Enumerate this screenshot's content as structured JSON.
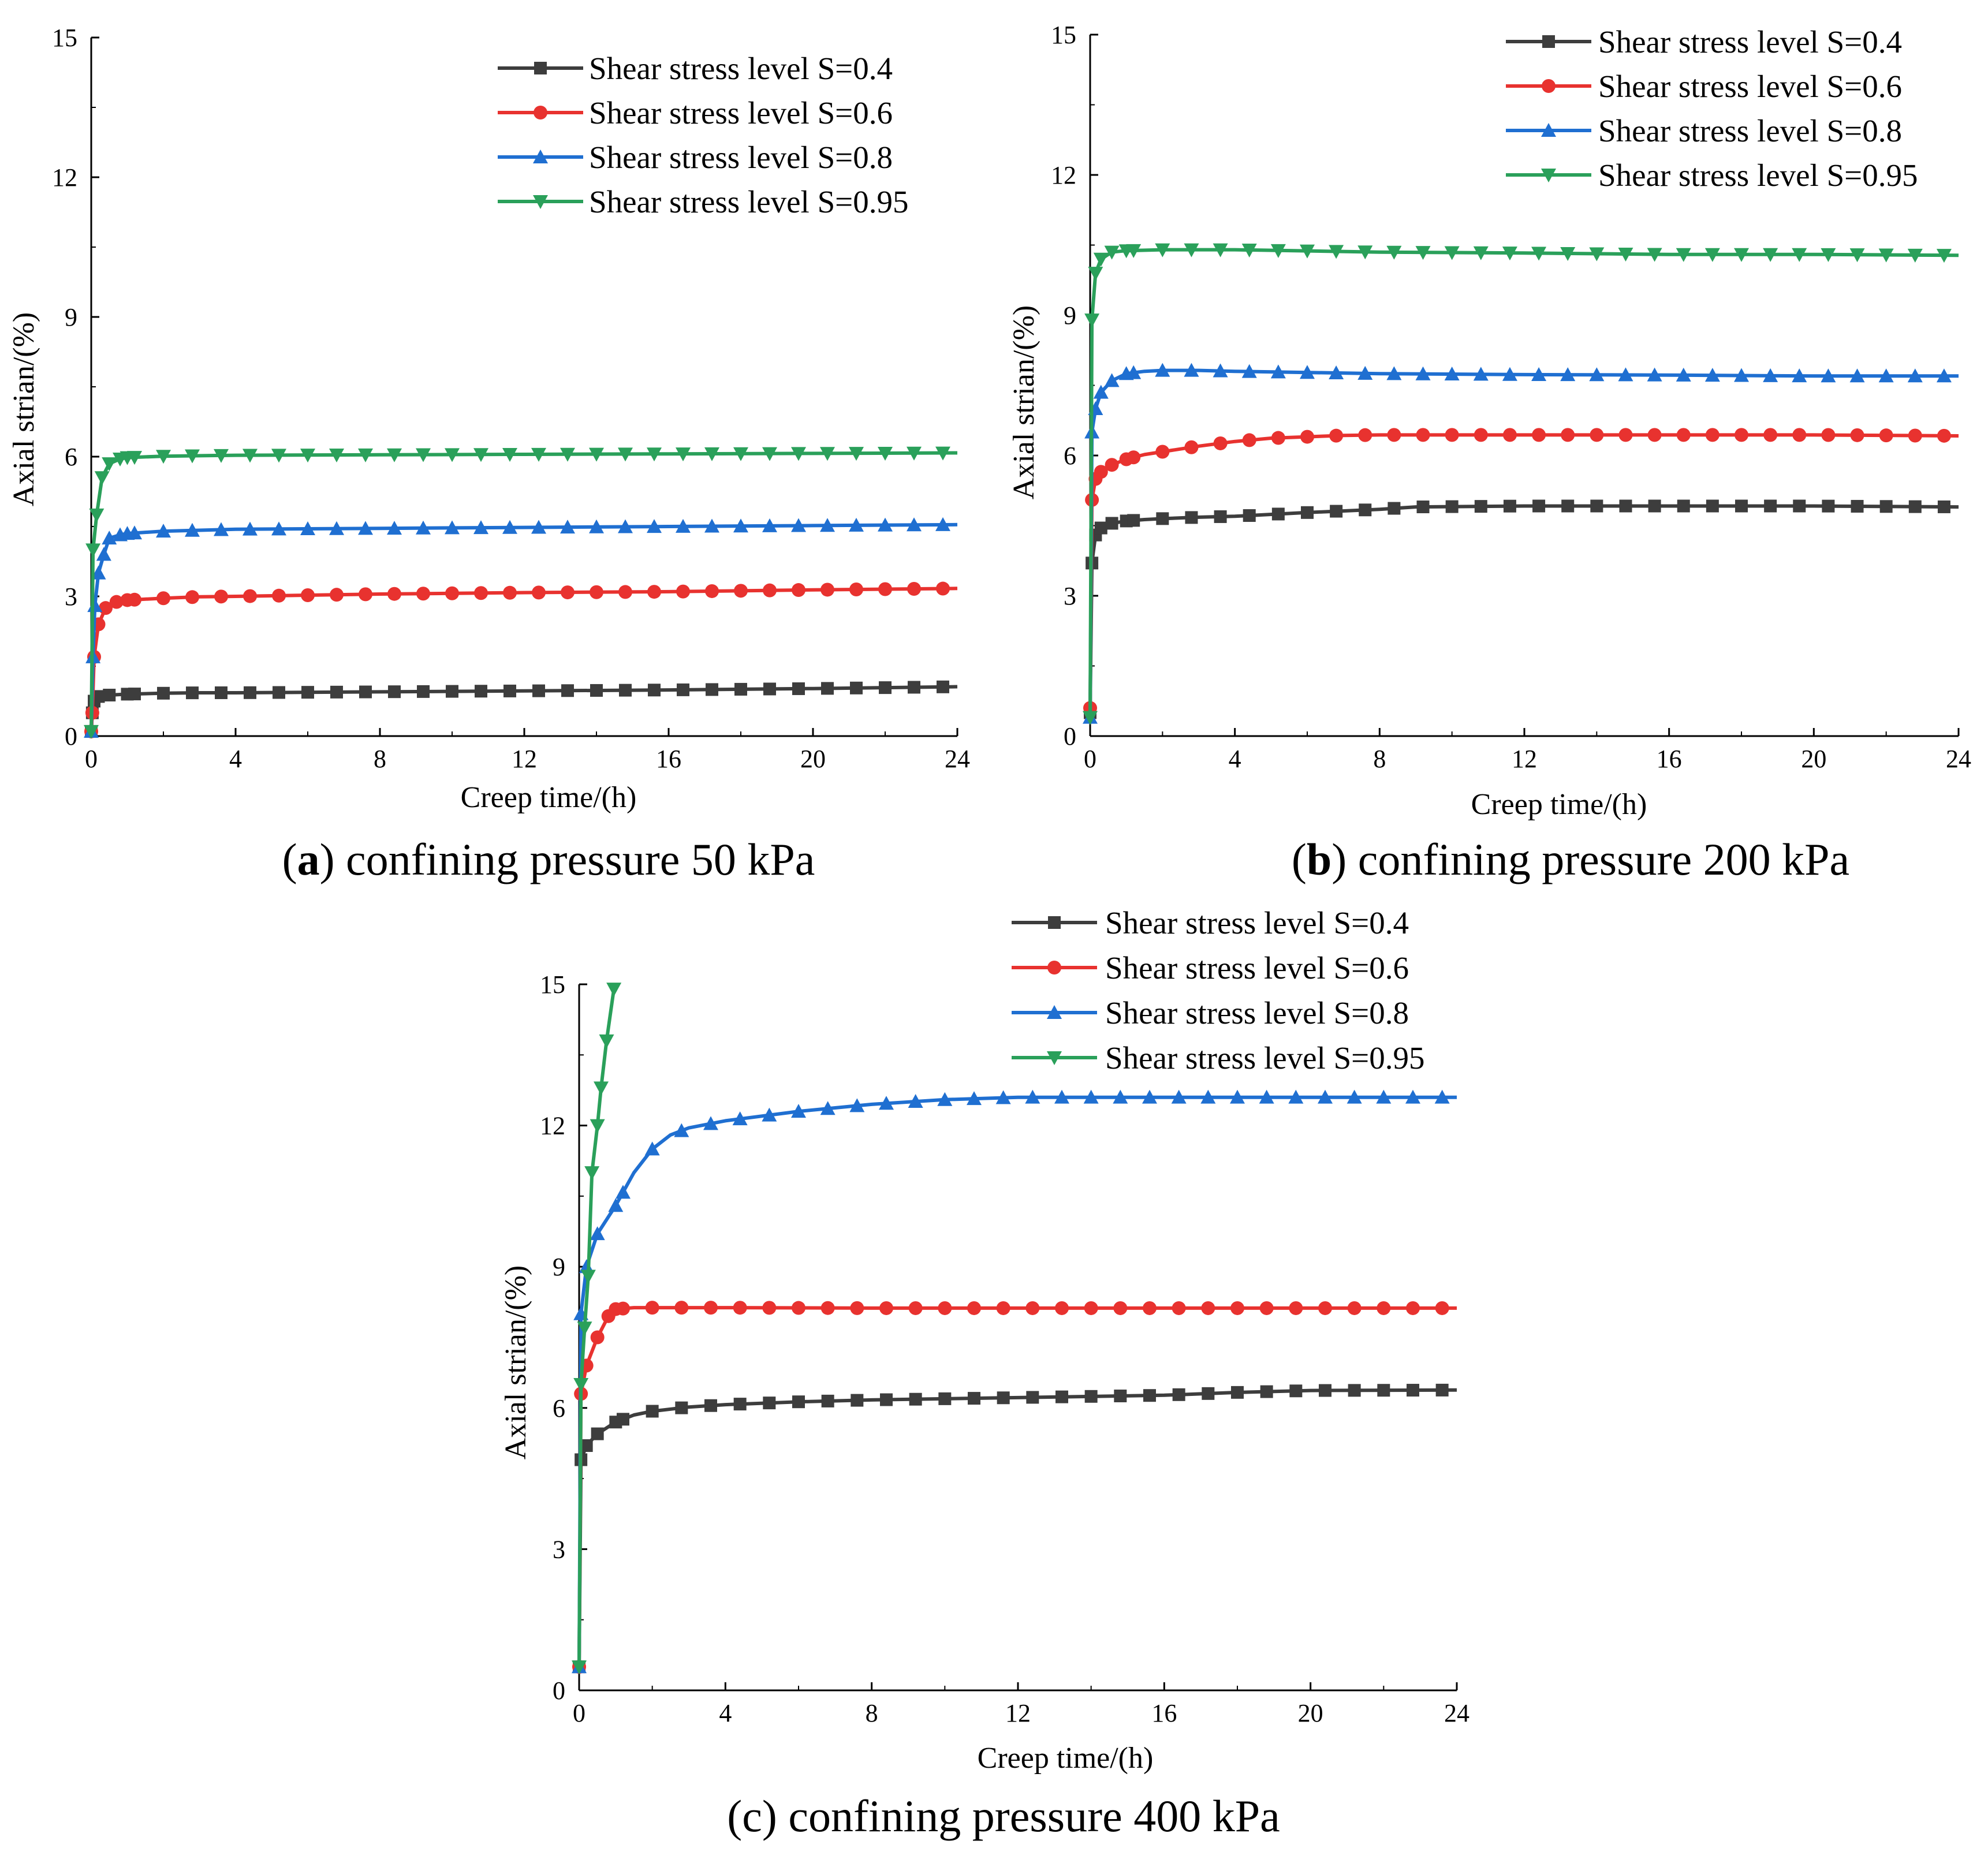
{
  "figure": {
    "captions": [
      {
        "letter": "a",
        "text": ") confining pressure 50 kPa"
      },
      {
        "letter": "b",
        "text": ") confining pressure 200 kPa"
      },
      {
        "letter": "c",
        "text": ") confining pressure 400 kPa"
      }
    ]
  },
  "chart_data": [
    {
      "id": "a",
      "type": "line",
      "title": "(a) confining pressure 50 kPa",
      "xlabel": "Creep time/(h)",
      "ylabel": "Axial strian/(%)",
      "xlim": [
        0,
        24
      ],
      "ylim": [
        0,
        15
      ],
      "xticks": [
        0,
        4,
        8,
        12,
        16,
        20,
        24
      ],
      "yticks": [
        0,
        3,
        6,
        9,
        12,
        15
      ],
      "legend_position": "top-right",
      "series": [
        {
          "name": "Shear stress level S=0.4",
          "color": "#3d3d3d",
          "marker": "square",
          "points": [
            [
              0,
              0.1
            ],
            [
              0.03,
              0.5
            ],
            [
              0.08,
              0.75
            ],
            [
              0.2,
              0.85
            ],
            [
              0.5,
              0.88
            ],
            [
              1,
              0.9
            ],
            [
              2,
              0.92
            ],
            [
              3,
              0.93
            ],
            [
              4,
              0.93
            ],
            [
              8,
              0.95
            ],
            [
              12,
              0.97
            ],
            [
              16,
              0.99
            ],
            [
              20,
              1.02
            ],
            [
              24,
              1.06
            ]
          ]
        },
        {
          "name": "Shear stress level S=0.6",
          "color": "#e8322f",
          "marker": "circle",
          "points": [
            [
              0,
              0.1
            ],
            [
              0.03,
              0.5
            ],
            [
              0.08,
              1.7
            ],
            [
              0.2,
              2.4
            ],
            [
              0.4,
              2.75
            ],
            [
              0.7,
              2.88
            ],
            [
              1,
              2.92
            ],
            [
              2,
              2.96
            ],
            [
              3,
              2.99
            ],
            [
              4,
              3.0
            ],
            [
              8,
              3.05
            ],
            [
              12,
              3.08
            ],
            [
              16,
              3.1
            ],
            [
              20,
              3.14
            ],
            [
              24,
              3.17
            ]
          ]
        },
        {
          "name": "Shear stress level S=0.8",
          "color": "#1f6fd1",
          "marker": "triangle-up",
          "points": [
            [
              0,
              0.1
            ],
            [
              0.05,
              1.7
            ],
            [
              0.1,
              2.8
            ],
            [
              0.2,
              3.5
            ],
            [
              0.35,
              3.9
            ],
            [
              0.5,
              4.25
            ],
            [
              0.8,
              4.32
            ],
            [
              1,
              4.35
            ],
            [
              2,
              4.4
            ],
            [
              3,
              4.42
            ],
            [
              4,
              4.44
            ],
            [
              8,
              4.46
            ],
            [
              12,
              4.48
            ],
            [
              16,
              4.5
            ],
            [
              20,
              4.52
            ],
            [
              24,
              4.54
            ]
          ]
        },
        {
          "name": "Shear stress level S=0.95",
          "color": "#2aa05a",
          "marker": "triangle-down",
          "points": [
            [
              0,
              0.1
            ],
            [
              0.05,
              4.0
            ],
            [
              0.15,
              4.75
            ],
            [
              0.3,
              5.55
            ],
            [
              0.5,
              5.85
            ],
            [
              0.8,
              5.95
            ],
            [
              1,
              5.98
            ],
            [
              2,
              6.01
            ],
            [
              3,
              6.02
            ],
            [
              4,
              6.03
            ],
            [
              8,
              6.04
            ],
            [
              12,
              6.05
            ],
            [
              16,
              6.06
            ],
            [
              20,
              6.07
            ],
            [
              24,
              6.08
            ]
          ]
        }
      ]
    },
    {
      "id": "b",
      "type": "line",
      "title": "(b) confining pressure 200 kPa",
      "xlabel": "Creep time/(h)",
      "ylabel": "Axial strian/(%)",
      "xlim": [
        0,
        24
      ],
      "ylim": [
        0,
        15
      ],
      "xticks": [
        0,
        4,
        8,
        12,
        16,
        20,
        24
      ],
      "yticks": [
        0,
        3,
        6,
        9,
        12,
        15
      ],
      "legend_position": "top-right",
      "series": [
        {
          "name": "Shear stress level S=0.4",
          "color": "#3d3d3d",
          "marker": "square",
          "points": [
            [
              0,
              0.5
            ],
            [
              0.05,
              3.7
            ],
            [
              0.15,
              4.3
            ],
            [
              0.3,
              4.45
            ],
            [
              0.6,
              4.55
            ],
            [
              1,
              4.6
            ],
            [
              1.5,
              4.63
            ],
            [
              2,
              4.65
            ],
            [
              3,
              4.68
            ],
            [
              4,
              4.7
            ],
            [
              6,
              4.78
            ],
            [
              8,
              4.85
            ],
            [
              9,
              4.9
            ],
            [
              12,
              4.92
            ],
            [
              16,
              4.92
            ],
            [
              20,
              4.92
            ],
            [
              24,
              4.9
            ]
          ]
        },
        {
          "name": "Shear stress level S=0.6",
          "color": "#e8322f",
          "marker": "circle",
          "points": [
            [
              0,
              0.6
            ],
            [
              0.05,
              5.05
            ],
            [
              0.15,
              5.5
            ],
            [
              0.3,
              5.65
            ],
            [
              0.6,
              5.8
            ],
            [
              1,
              5.92
            ],
            [
              1.5,
              6.02
            ],
            [
              2,
              6.08
            ],
            [
              3,
              6.2
            ],
            [
              4,
              6.3
            ],
            [
              5,
              6.37
            ],
            [
              6,
              6.4
            ],
            [
              7,
              6.43
            ],
            [
              8,
              6.44
            ],
            [
              12,
              6.44
            ],
            [
              16,
              6.44
            ],
            [
              20,
              6.44
            ],
            [
              24,
              6.42
            ]
          ]
        },
        {
          "name": "Shear stress level S=0.8",
          "color": "#1f6fd1",
          "marker": "triangle-up",
          "points": [
            [
              0,
              0.4
            ],
            [
              0.05,
              6.5
            ],
            [
              0.15,
              7.0
            ],
            [
              0.3,
              7.35
            ],
            [
              0.6,
              7.6
            ],
            [
              1,
              7.75
            ],
            [
              1.5,
              7.8
            ],
            [
              2,
              7.82
            ],
            [
              3,
              7.82
            ],
            [
              4,
              7.8
            ],
            [
              8,
              7.75
            ],
            [
              12,
              7.73
            ],
            [
              16,
              7.72
            ],
            [
              20,
              7.7
            ],
            [
              24,
              7.7
            ]
          ]
        },
        {
          "name": "Shear stress level S=0.95",
          "color": "#2aa05a",
          "marker": "triangle-down",
          "points": [
            [
              0,
              0.4
            ],
            [
              0.05,
              8.9
            ],
            [
              0.15,
              9.9
            ],
            [
              0.3,
              10.2
            ],
            [
              0.6,
              10.35
            ],
            [
              1,
              10.38
            ],
            [
              2,
              10.4
            ],
            [
              4,
              10.4
            ],
            [
              8,
              10.35
            ],
            [
              12,
              10.33
            ],
            [
              16,
              10.3
            ],
            [
              20,
              10.3
            ],
            [
              24,
              10.28
            ]
          ]
        }
      ]
    },
    {
      "id": "c",
      "type": "line",
      "title": "(c) confining pressure 400 kPa",
      "xlabel": "Creep time/(h)",
      "ylabel": "Axial strian/(%)",
      "xlim": [
        0,
        24
      ],
      "ylim": [
        0,
        15
      ],
      "xticks": [
        0,
        4,
        8,
        12,
        16,
        20,
        24
      ],
      "yticks": [
        0,
        3,
        6,
        9,
        12,
        15
      ],
      "legend_position": "top-right",
      "series": [
        {
          "name": "Shear stress level S=0.4",
          "color": "#3d3d3d",
          "marker": "square",
          "points": [
            [
              0,
              0.5
            ],
            [
              0.05,
              4.9
            ],
            [
              0.2,
              5.2
            ],
            [
              0.5,
              5.45
            ],
            [
              1,
              5.7
            ],
            [
              1.5,
              5.85
            ],
            [
              2,
              5.93
            ],
            [
              3,
              6.02
            ],
            [
              4,
              6.07
            ],
            [
              6,
              6.13
            ],
            [
              8,
              6.17
            ],
            [
              12,
              6.22
            ],
            [
              16,
              6.27
            ],
            [
              18,
              6.33
            ],
            [
              20,
              6.37
            ],
            [
              24,
              6.38
            ]
          ]
        },
        {
          "name": "Shear stress level S=0.6",
          "color": "#e8322f",
          "marker": "circle",
          "points": [
            [
              0,
              0.5
            ],
            [
              0.05,
              6.3
            ],
            [
              0.2,
              6.9
            ],
            [
              0.5,
              7.5
            ],
            [
              0.8,
              7.95
            ],
            [
              1,
              8.1
            ],
            [
              1.5,
              8.13
            ],
            [
              2,
              8.13
            ],
            [
              4,
              8.13
            ],
            [
              8,
              8.12
            ],
            [
              12,
              8.12
            ],
            [
              16,
              8.12
            ],
            [
              20,
              8.12
            ],
            [
              24,
              8.12
            ]
          ]
        },
        {
          "name": "Shear stress level S=0.8",
          "color": "#1f6fd1",
          "marker": "triangle-up",
          "points": [
            [
              0,
              0.5
            ],
            [
              0.05,
              8.0
            ],
            [
              0.2,
              9.0
            ],
            [
              0.5,
              9.7
            ],
            [
              1,
              10.3
            ],
            [
              1.5,
              11.0
            ],
            [
              2,
              11.5
            ],
            [
              2.5,
              11.8
            ],
            [
              3,
              11.95
            ],
            [
              4,
              12.1
            ],
            [
              6,
              12.3
            ],
            [
              8,
              12.45
            ],
            [
              10,
              12.55
            ],
            [
              12,
              12.6
            ],
            [
              16,
              12.6
            ],
            [
              20,
              12.6
            ],
            [
              24,
              12.6
            ]
          ]
        },
        {
          "name": "Shear stress level S=0.95",
          "color": "#2aa05a",
          "marker": "triangle-down",
          "points": [
            [
              0,
              0.5
            ],
            [
              0.05,
              6.5
            ],
            [
              0.15,
              7.7
            ],
            [
              0.25,
              8.8
            ],
            [
              0.35,
              11.0
            ],
            [
              0.5,
              12.0
            ],
            [
              0.6,
              12.8
            ],
            [
              0.75,
              13.8
            ],
            [
              0.95,
              14.9
            ]
          ]
        }
      ]
    }
  ]
}
